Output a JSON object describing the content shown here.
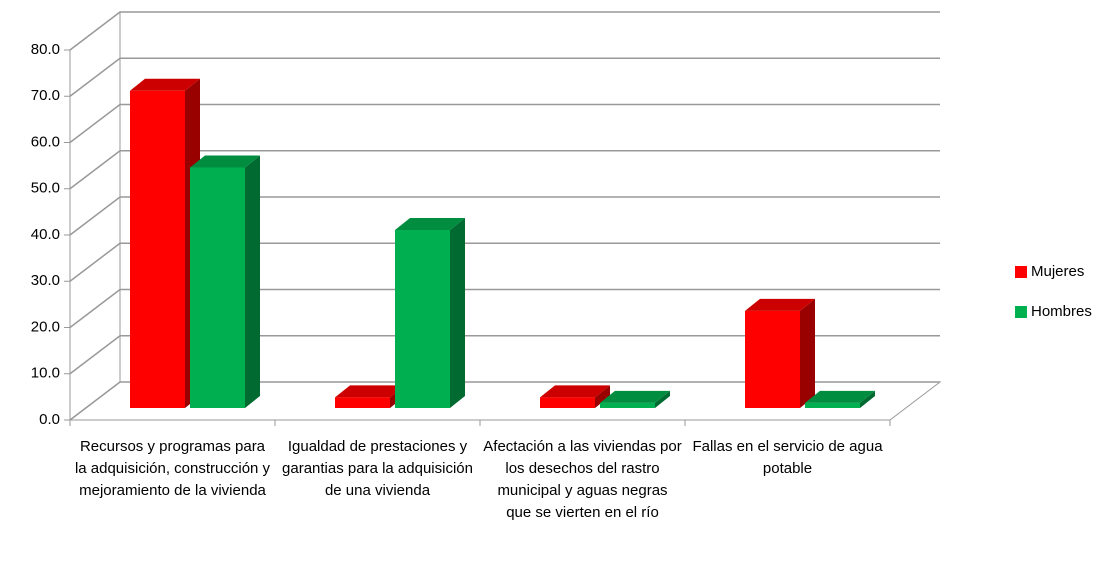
{
  "chart_data": {
    "type": "bar3d",
    "categories": [
      "Recursos y programas para la adquisición, construcción y mejoramiento de la vivienda",
      "Igualdad de prestaciones y garantias para la adquisición de una vivienda",
      "Afectación a las viviendas por los desechos del rastro municipal y aguas negras  que se vierten en el río",
      "Fallas en el servicio de agua potable"
    ],
    "series": [
      {
        "name": "Mujeres",
        "color": "#ff0000",
        "values": [
          68.6,
          2.3,
          2.3,
          21.0
        ]
      },
      {
        "name": "Hombres",
        "color": "#00b050",
        "values": [
          52.0,
          38.5,
          1.1,
          1.1
        ]
      }
    ],
    "ylim": [
      0,
      80
    ],
    "yticks": [
      {
        "value": 0,
        "label": "0.0"
      },
      {
        "value": 10,
        "label": "10.0"
      },
      {
        "value": 20,
        "label": "20.0"
      },
      {
        "value": 30,
        "label": "30.0"
      },
      {
        "value": 40,
        "label": "40.0"
      },
      {
        "value": 50,
        "label": "50.0"
      },
      {
        "value": 60,
        "label": "60.0"
      },
      {
        "value": 70,
        "label": "70.0"
      },
      {
        "value": 80,
        "label": "80.0"
      }
    ],
    "grid": true,
    "legend": "right"
  }
}
